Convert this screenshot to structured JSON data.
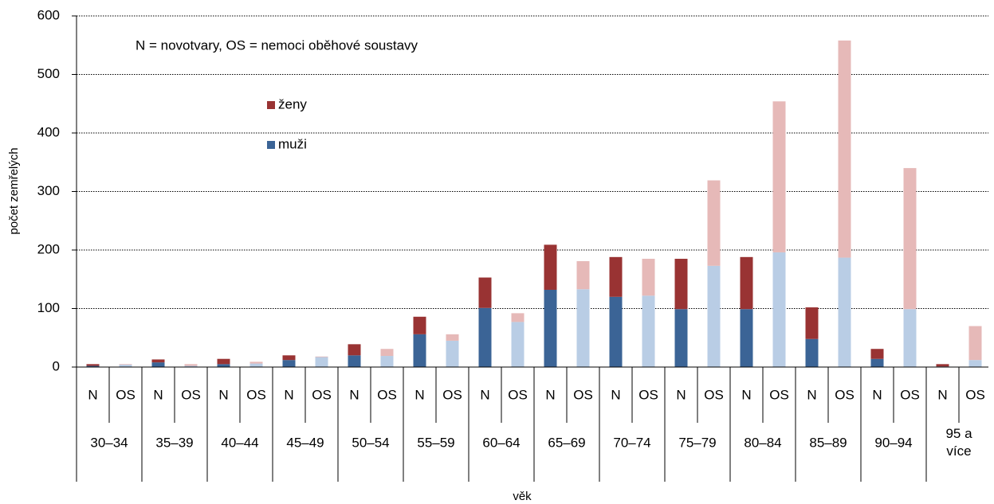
{
  "chart_data": {
    "type": "bar",
    "stacked": true,
    "annotation": "N = novotvary, OS = nemoci oběhové soustavy",
    "x_label": "věk",
    "y_label": "počet zemřelých",
    "groups": [
      "30–34",
      "35–39",
      "40–44",
      "45–49",
      "50–54",
      "55–59",
      "60–64",
      "65–69",
      "70–74",
      "75–79",
      "80–84",
      "85–89",
      "90–94",
      "95 a více"
    ],
    "categories": [
      "N",
      "OS",
      "N",
      "OS",
      "N",
      "OS",
      "N",
      "OS",
      "N",
      "OS",
      "N",
      "OS",
      "N",
      "OS",
      "N",
      "OS",
      "N",
      "OS",
      "N",
      "OS",
      "N",
      "OS",
      "N",
      "OS",
      "N",
      "OS",
      "N",
      "OS"
    ],
    "series": [
      {
        "name": "muži",
        "color": "#3b6496",
        "colors": [
          "#3b6496",
          "#b9cde5"
        ],
        "values": [
          2,
          4,
          8,
          2,
          5,
          6,
          12,
          17,
          20,
          19,
          56,
          45,
          101,
          77,
          132,
          133,
          120,
          122,
          99,
          173,
          99,
          196,
          48,
          187,
          14,
          99,
          1,
          12
        ]
      },
      {
        "name": "ženy",
        "color": "#993333",
        "colors": [
          "#993333",
          "#e6b9b8"
        ],
        "values": [
          3,
          1,
          5,
          3,
          9,
          3,
          8,
          1,
          19,
          12,
          30,
          11,
          52,
          15,
          77,
          48,
          68,
          63,
          86,
          146,
          89,
          258,
          54,
          371,
          17,
          241,
          4,
          58
        ]
      }
    ],
    "ylim": [
      0,
      600
    ],
    "yticks": [
      0,
      100,
      200,
      300,
      400,
      500,
      600
    ],
    "grid": true
  }
}
